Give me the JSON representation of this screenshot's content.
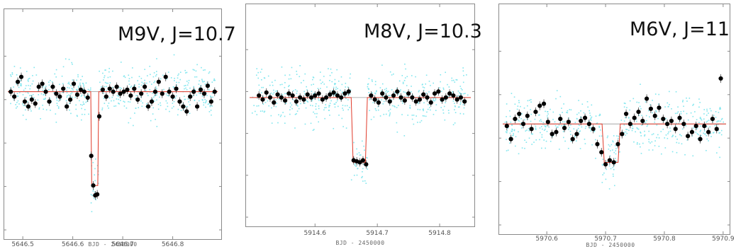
{
  "chart_data": [
    {
      "type": "scatter",
      "title": "M9V, J=10.7",
      "xlabel": "BJD - 2450000",
      "ylabel": "",
      "xticks": [
        "5646.5",
        "5646.6",
        "5646.7",
        "5646.8"
      ],
      "xlim": [
        5646.47,
        5646.89
      ],
      "ylim": [
        0.986,
        1.008
      ],
      "colors": {
        "binned": "#000000",
        "raw": "#7fe6ee",
        "model": "#e03a2a",
        "reference": "#999999"
      },
      "model": {
        "baseline": 1.0,
        "ingress": 5646.636,
        "egress": 5646.652,
        "depth_bottom": 0.9905
      },
      "series": [
        {
          "x": [
            5646.476,
            5646.483,
            5646.49,
            5646.497,
            5646.504,
            5646.511,
            5646.518,
            5646.525,
            5646.532,
            5646.539,
            5646.546,
            5646.553,
            5646.56,
            5646.567,
            5646.574,
            5646.581,
            5646.588,
            5646.595,
            5646.602,
            5646.609,
            5646.616,
            5646.623,
            5646.63,
            5646.637,
            5646.641,
            5646.645,
            5646.649,
            5646.653,
            5646.66,
            5646.667,
            5646.674,
            5646.681,
            5646.688,
            5646.695,
            5646.702,
            5646.709,
            5646.716,
            5646.723,
            5646.73,
            5646.737,
            5646.744,
            5646.751,
            5646.758,
            5646.765,
            5646.772,
            5646.779,
            5646.786,
            5646.793,
            5646.8,
            5646.807,
            5646.814,
            5646.821,
            5646.828,
            5646.835,
            5646.842,
            5646.849,
            5646.856,
            5646.863,
            5646.87,
            5646.877,
            5646.884
          ],
          "y": [
            1.0,
            0.9995,
            1.001,
            1.0015,
            0.999,
            0.9985,
            0.9992,
            0.9988,
            1.0005,
            1.0008,
            1.0,
            0.999,
            1.0005,
            0.9998,
            0.9995,
            1.0003,
            0.9985,
            0.9992,
            1.0008,
            0.9997,
            1.0002,
            1.0,
            0.9994,
            0.9935,
            0.9905,
            0.9895,
            0.9896,
            0.9975,
            1.0002,
            0.9995,
            1.0003,
            1.0,
            1.0005,
            0.9998,
            1.0,
            1.0002,
            0.9996,
            1.0003,
            0.9992,
            0.9998,
            1.0005,
            0.9985,
            0.999,
            1.0,
            1.001,
            0.9998,
            1.0015,
            1.0,
            0.9995,
            1.0003,
            0.999,
            0.9985,
            0.998,
            0.9995,
            1.0,
            0.9985,
            1.0002,
            0.9998,
            1.0006,
            0.999,
            1.0
          ]
        }
      ]
    },
    {
      "type": "scatter",
      "title": "M8V, J=10.3",
      "xlabel": "BJD - 2450000",
      "ylabel": "",
      "xticks": [
        "5914.6",
        "5914.7",
        "5914.8"
      ],
      "xlim": [
        5914.495,
        5914.85
      ],
      "ylim": [
        0.988,
        1.009
      ],
      "colors": {
        "binned": "#000000",
        "raw": "#7fe6ee",
        "model": "#e03a2a",
        "reference": "#999999"
      },
      "model": {
        "baseline": 1.0,
        "ingress": 5914.658,
        "egress": 5914.684,
        "depth_bottom": 0.9935
      },
      "series": [
        {
          "x": [
            5914.51,
            5914.516,
            5914.522,
            5914.528,
            5914.534,
            5914.54,
            5914.546,
            5914.552,
            5914.558,
            5914.564,
            5914.57,
            5914.576,
            5914.582,
            5914.588,
            5914.594,
            5914.6,
            5914.606,
            5914.612,
            5914.618,
            5914.624,
            5914.63,
            5914.636,
            5914.642,
            5914.648,
            5914.654,
            5914.662,
            5914.667,
            5914.672,
            5914.677,
            5914.682,
            5914.69,
            5914.696,
            5914.702,
            5914.708,
            5914.714,
            5914.72,
            5914.726,
            5914.732,
            5914.738,
            5914.744,
            5914.75,
            5914.756,
            5914.762,
            5914.768,
            5914.774,
            5914.78,
            5914.786,
            5914.792,
            5914.798,
            5914.804,
            5914.81,
            5914.816,
            5914.822,
            5914.828,
            5914.834,
            5914.84
          ],
          "y": [
            1.0002,
            0.9998,
            1.0005,
            1.0,
            0.9995,
            1.0003,
            1.0,
            0.9997,
            1.0004,
            1.0002,
            0.9996,
            1.0,
            0.9998,
            1.0003,
            1.0,
            1.0002,
            1.0004,
            0.9998,
            1.0,
            1.0003,
            1.0005,
            1.0002,
            1.0,
            1.0004,
            1.0006,
            0.9937,
            0.9936,
            0.9935,
            0.9937,
            0.9933,
            1.0002,
            0.9998,
            0.9995,
            1.0004,
            1.0,
            0.9996,
            1.0002,
            1.0006,
            1.0,
            0.9997,
            1.0004,
            1.0,
            0.9996,
            0.9998,
            1.0003,
            1.0,
            0.9995,
            1.0004,
            1.0006,
            0.9998,
            1.0,
            1.0004,
            1.0002,
            0.9998,
            1.0,
            0.9996
          ]
        }
      ]
    },
    {
      "type": "scatter",
      "title": "M6V, J=11",
      "xlabel": "BJD - 2450000",
      "ylabel": "",
      "xticks": [
        "5970.6",
        "5970.7",
        "5970.8",
        "5970.9"
      ],
      "xlim": [
        5970.525,
        5970.905
      ],
      "ylim": [
        0.99,
        1.0115
      ],
      "colors": {
        "binned": "#000000",
        "raw": "#7fe6ee",
        "model": "#e03a2a",
        "reference": "#999999"
      },
      "model": {
        "baseline": 1.0,
        "ingress": 5970.694,
        "egress": 5970.725,
        "depth_bottom": 0.9962
      },
      "series": [
        {
          "x": [
            5970.532,
            5970.539,
            5970.546,
            5970.553,
            5970.56,
            5970.567,
            5970.574,
            5970.581,
            5970.588,
            5970.595,
            5970.602,
            5970.609,
            5970.616,
            5970.623,
            5970.63,
            5970.637,
            5970.644,
            5970.651,
            5970.658,
            5970.665,
            5970.672,
            5970.679,
            5970.686,
            5970.693,
            5970.7,
            5970.707,
            5970.714,
            5970.721,
            5970.728,
            5970.735,
            5970.742,
            5970.749,
            5970.756,
            5970.763,
            5970.77,
            5970.777,
            5970.784,
            5970.791,
            5970.798,
            5970.805,
            5970.812,
            5970.819,
            5970.826,
            5970.833,
            5970.84,
            5970.847,
            5970.854,
            5970.861,
            5970.868,
            5970.875,
            5970.882,
            5970.889,
            5970.896
          ],
          "y": [
            0.9998,
            0.9985,
            1.0005,
            1.001,
            1.0,
            1.0008,
            0.9995,
            1.0012,
            1.0018,
            1.002,
            1.0002,
            0.999,
            0.9992,
            1.0005,
            0.9996,
            1.0002,
            0.9985,
            0.999,
            1.0003,
            1.0006,
            1.0,
            0.9995,
            0.998,
            0.9972,
            0.996,
            0.9964,
            0.9962,
            0.998,
            0.999,
            1.001,
            1.0,
            1.0006,
            1.0012,
            1.0003,
            1.0025,
            1.0015,
            1.0008,
            1.0016,
            1.0005,
            1.0,
            1.0003,
            0.9995,
            1.0006,
            1.0,
            0.9988,
            0.9992,
            0.9998,
            0.9985,
            0.9998,
            0.9992,
            1.0005,
            0.9995,
            1.0045
          ]
        }
      ]
    }
  ]
}
